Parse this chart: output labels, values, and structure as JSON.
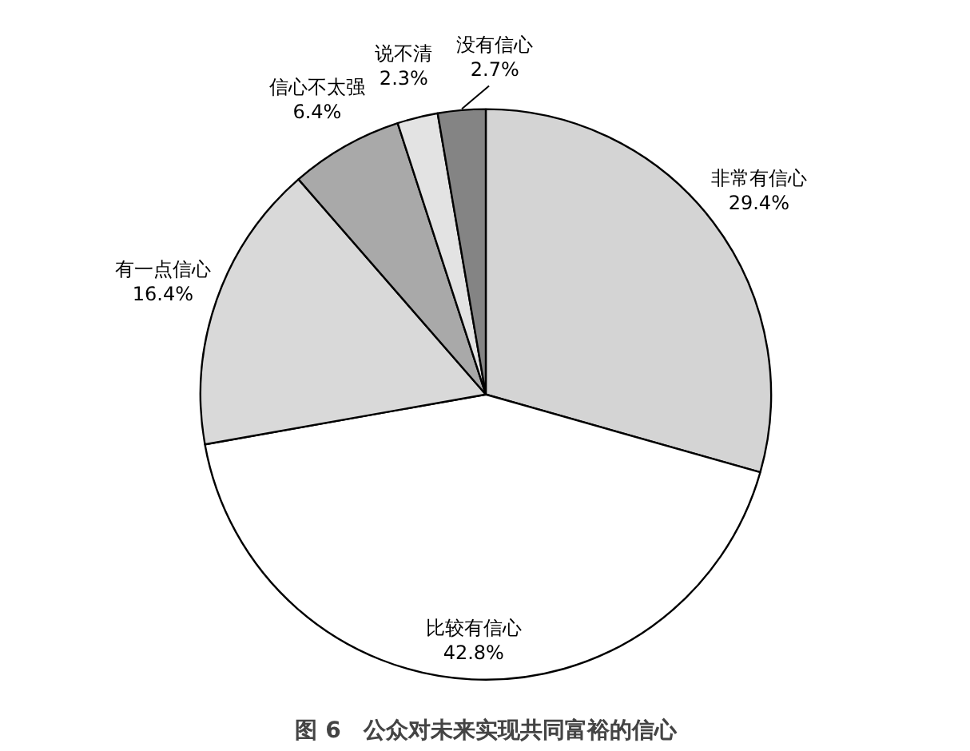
{
  "chart_data": {
    "type": "pie",
    "title": "图 6　公众对未来实现共同富裕的信心",
    "categories": [
      "非常有信心",
      "比较有信心",
      "有一点信心",
      "信心不太强",
      "说不清",
      "没有信心"
    ],
    "values": [
      29.4,
      42.8,
      16.4,
      6.4,
      2.3,
      2.7
    ],
    "colors": [
      "#d4d4d4",
      "#ffffff",
      "#d9d9d9",
      "#a9a9a9",
      "#e3e3e3",
      "#848484"
    ],
    "value_labels": [
      "29.4%",
      "42.8%",
      "16.4%",
      "6.4%",
      "2.3%",
      "2.7%"
    ]
  }
}
